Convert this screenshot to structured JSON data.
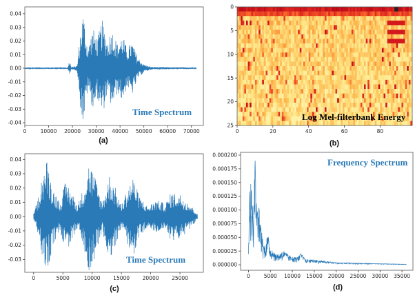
{
  "colors": {
    "line": "#2a7ab8",
    "anno_blue": "#2a7ab8",
    "anno_black": "#000000",
    "heat_low": "#ffffc0",
    "heat_high": "#cc0000"
  },
  "panels": {
    "a": "(a)",
    "b": "(b)",
    "c": "(c)",
    "d": "(d)"
  },
  "chart_data": [
    {
      "id": "a",
      "type": "line",
      "annotation": "Time Spectrum",
      "xlim": [
        0,
        75000
      ],
      "ylim": [
        -0.042,
        0.045
      ],
      "xticks": [
        0,
        10000,
        20000,
        30000,
        40000,
        50000,
        60000,
        70000
      ],
      "xtick_labels": [
        "0",
        "10000",
        "20000",
        "30000",
        "40000",
        "50000",
        "60000",
        "70000"
      ],
      "yticks": [
        -0.04,
        -0.03,
        -0.02,
        -0.01,
        0.0,
        0.01,
        0.02,
        0.03,
        0.04
      ],
      "ytick_labels": [
        "-0.04",
        "-0.03",
        "-0.02",
        "-0.01",
        "0.00",
        "0.01",
        "0.02",
        "0.03",
        "0.04"
      ],
      "signal_range": [
        0,
        72000
      ],
      "envelope": [
        [
          0,
          0.0005
        ],
        [
          18000,
          0.0005
        ],
        [
          18800,
          0.006
        ],
        [
          19500,
          0.0008
        ],
        [
          22000,
          0.002
        ],
        [
          23500,
          0.03
        ],
        [
          24500,
          0.042
        ],
        [
          26500,
          0.015
        ],
        [
          28500,
          0.03
        ],
        [
          30500,
          0.022
        ],
        [
          32500,
          0.036
        ],
        [
          34500,
          0.02
        ],
        [
          36500,
          0.029
        ],
        [
          39000,
          0.018
        ],
        [
          41000,
          0.025
        ],
        [
          43000,
          0.014
        ],
        [
          45000,
          0.02
        ],
        [
          47500,
          0.008
        ],
        [
          50000,
          0.003
        ],
        [
          53000,
          0.001
        ],
        [
          72000,
          0.0005
        ]
      ]
    },
    {
      "id": "b",
      "type": "heatmap",
      "annotation": "Log Mel-filterbank Energy",
      "xlim": [
        0,
        98
      ],
      "ylim": [
        25,
        0
      ],
      "xticks": [
        0,
        20,
        40,
        60,
        80
      ],
      "xtick_labels": [
        "0",
        "20",
        "40",
        "60",
        "80"
      ],
      "yticks": [
        0,
        5,
        10,
        15,
        20,
        25
      ],
      "ytick_labels": [
        "0",
        "5",
        "10",
        "15",
        "20",
        "25"
      ],
      "rows": 26,
      "cols": 98,
      "colormap": "YlOrRd"
    },
    {
      "id": "c",
      "type": "line",
      "annotation": "Time Spectrum",
      "xlim": [
        -1500,
        29000
      ],
      "ylim": [
        -0.039,
        0.044
      ],
      "xticks": [
        0,
        5000,
        10000,
        15000,
        20000,
        25000
      ],
      "xtick_labels": [
        "0",
        "5000",
        "10000",
        "15000",
        "20000",
        "25000"
      ],
      "yticks": [
        -0.03,
        -0.02,
        -0.01,
        0.0,
        0.01,
        0.02,
        0.03,
        0.04
      ],
      "ytick_labels": [
        "-0.03",
        "-0.02",
        "-0.01",
        "0.00",
        "0.01",
        "0.02",
        "0.03",
        "0.04"
      ],
      "signal_range": [
        0,
        28000
      ],
      "envelope": [
        [
          0,
          0.002
        ],
        [
          700,
          0.012
        ],
        [
          1500,
          0.03
        ],
        [
          2300,
          0.04
        ],
        [
          3300,
          0.02
        ],
        [
          4500,
          0.01
        ],
        [
          5500,
          0.025
        ],
        [
          6500,
          0.018
        ],
        [
          7500,
          0.008
        ],
        [
          8500,
          0.02
        ],
        [
          9500,
          0.039
        ],
        [
          10500,
          0.028
        ],
        [
          11700,
          0.01
        ],
        [
          13000,
          0.03
        ],
        [
          14000,
          0.02
        ],
        [
          15000,
          0.008
        ],
        [
          16000,
          0.02
        ],
        [
          17000,
          0.028
        ],
        [
          18000,
          0.015
        ],
        [
          19500,
          0.007
        ],
        [
          21000,
          0.012
        ],
        [
          22500,
          0.009
        ],
        [
          23500,
          0.017
        ],
        [
          25000,
          0.016
        ],
        [
          26500,
          0.01
        ],
        [
          28000,
          0.002
        ]
      ]
    },
    {
      "id": "d",
      "type": "line",
      "annotation": "Frequency Spectrum",
      "xlim": [
        -1800,
        37500
      ],
      "ylim": [
        -1e-05,
        0.000205
      ],
      "xticks": [
        0,
        5000,
        10000,
        15000,
        20000,
        25000,
        30000,
        35000
      ],
      "xtick_labels": [
        "0",
        "5000",
        "10000",
        "15000",
        "20000",
        "25000",
        "30000",
        "35000"
      ],
      "yticks": [
        0,
        2.5e-05,
        5e-05,
        7.5e-05,
        0.0001,
        0.000125,
        0.00015,
        0.000175,
        0.0002
      ],
      "ytick_labels": [
        "0.000000",
        "0.000025",
        "0.000050",
        "0.000075",
        "0.000100",
        "0.000125",
        "0.000150",
        "0.000175",
        "0.000200"
      ],
      "signal_range": [
        0,
        36000
      ],
      "envelope": [
        [
          0,
          2e-05
        ],
        [
          300,
          0.00015
        ],
        [
          700,
          0.000145
        ],
        [
          1100,
          8e-05
        ],
        [
          1500,
          0.000195
        ],
        [
          1900,
          9e-05
        ],
        [
          2300,
          0.00011
        ],
        [
          2800,
          7.5e-05
        ],
        [
          3300,
          4e-05
        ],
        [
          3800,
          3.5e-05
        ],
        [
          4400,
          5.5e-05
        ],
        [
          5000,
          3e-05
        ],
        [
          6000,
          2e-05
        ],
        [
          7000,
          1.8e-05
        ],
        [
          8000,
          2.5e-05
        ],
        [
          9500,
          1.5e-05
        ],
        [
          11000,
          1.3e-05
        ],
        [
          12000,
          2e-05
        ],
        [
          13000,
          1e-05
        ],
        [
          16000,
          8e-06
        ],
        [
          20000,
          4e-06
        ],
        [
          25000,
          3e-06
        ],
        [
          30000,
          2e-06
        ],
        [
          36000,
          1e-06
        ]
      ]
    }
  ]
}
